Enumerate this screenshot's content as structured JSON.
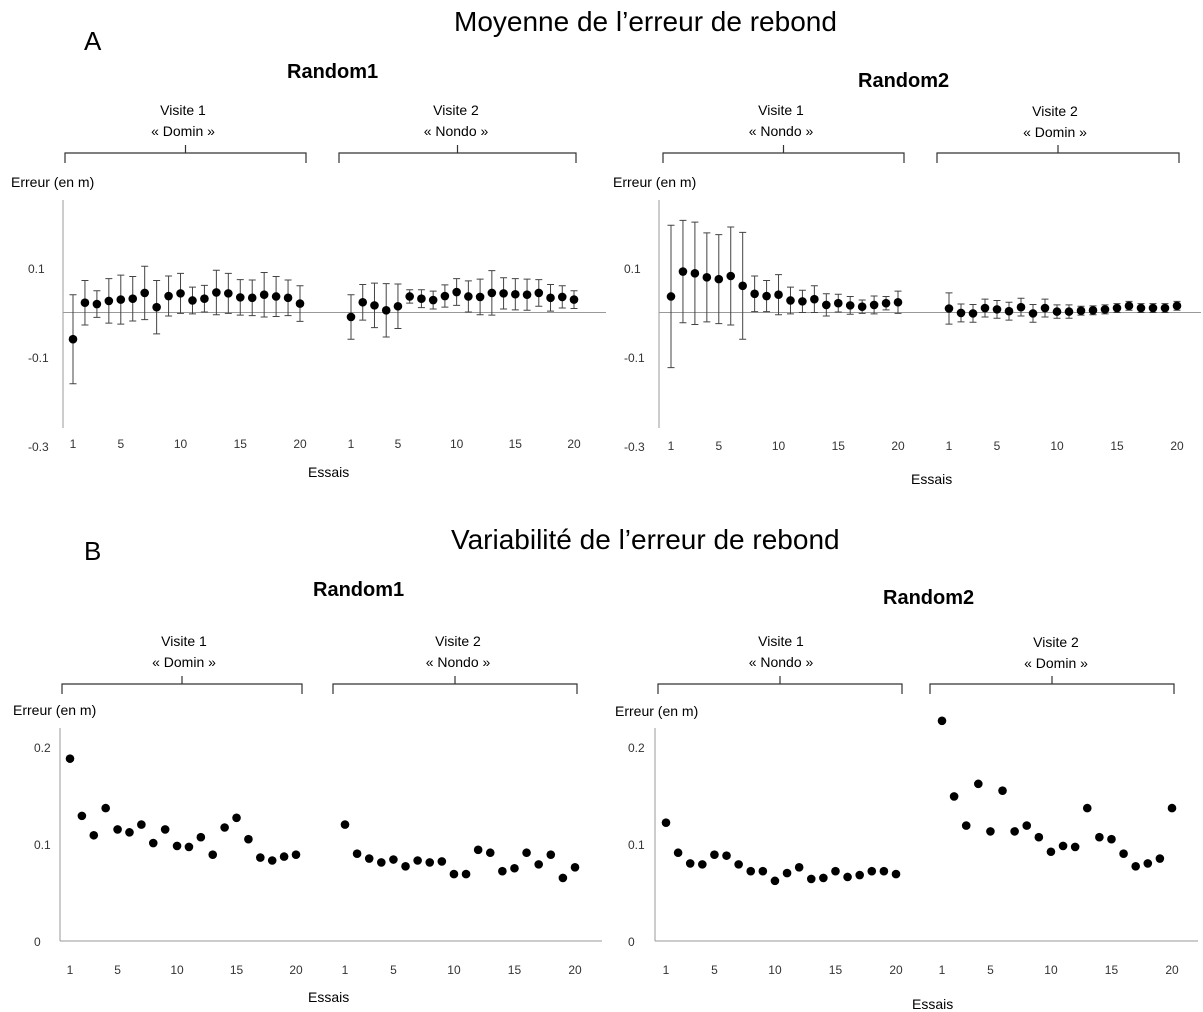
{
  "sections": {
    "A": {
      "letter": "A",
      "title": "Moyenne de l’erreur de rebond"
    },
    "B": {
      "letter": "B",
      "title": "Variabilité de l’erreur de rebond"
    }
  },
  "panels": {
    "A1": {
      "title": "Random1",
      "visit1": [
        "Visite 1",
        "« Domin »"
      ],
      "visit2": [
        "Visite 2",
        "«  Nondo »"
      ],
      "ylabel": "Erreur (en m)",
      "xlabel": "Essais"
    },
    "A2": {
      "title": "Random2",
      "visit1": [
        "Visite 1",
        "« Nondo »"
      ],
      "visit2": [
        "Visite 2",
        "«  Domin »"
      ],
      "ylabel": "Erreur (en m)",
      "xlabel": "Essais"
    },
    "B1": {
      "title": "Random1",
      "visit1": [
        "Visite 1",
        "« Domin »"
      ],
      "visit2": [
        "Visite 2",
        "«  Nondo »"
      ],
      "ylabel": "Erreur (en m)",
      "xlabel": "Essais"
    },
    "B2": {
      "title": "Random2",
      "visit1": [
        "Visite 1",
        "« Nondo »"
      ],
      "visit2": [
        "Visite 2",
        "«  Domin »"
      ],
      "ylabel": "Erreur (en m)",
      "xlabel": "Essais"
    }
  },
  "chart_data": [
    {
      "id": "A1",
      "type": "scatter",
      "title": "Random1",
      "xlabel": "Essais",
      "ylabel": "Erreur (en m)",
      "ylim": [
        -0.3,
        0.2
      ],
      "yticks": [
        0.1,
        -0.1,
        -0.3
      ],
      "yticklabels": [
        "0.1",
        "-0.1",
        "-0.3"
      ],
      "xticks": [
        1,
        5,
        10,
        15,
        20
      ],
      "error_bars": true,
      "series": [
        {
          "name": "Visite 1",
          "x": [
            1,
            2,
            3,
            4,
            5,
            6,
            7,
            8,
            9,
            10,
            11,
            12,
            13,
            14,
            15,
            16,
            17,
            18,
            19,
            20
          ],
          "values": [
            -0.06,
            0.022,
            0.019,
            0.026,
            0.029,
            0.031,
            0.044,
            0.012,
            0.037,
            0.043,
            0.027,
            0.031,
            0.045,
            0.043,
            0.034,
            0.033,
            0.04,
            0.036,
            0.033,
            0.02
          ],
          "errors": [
            0.1,
            0.05,
            0.03,
            0.05,
            0.055,
            0.05,
            0.06,
            0.06,
            0.045,
            0.045,
            0.03,
            0.03,
            0.05,
            0.045,
            0.04,
            0.04,
            0.05,
            0.045,
            0.04,
            0.04
          ]
        },
        {
          "name": "Visite 2",
          "x": [
            1,
            2,
            3,
            4,
            5,
            6,
            7,
            8,
            9,
            10,
            11,
            12,
            13,
            14,
            15,
            16,
            17,
            18,
            19,
            20
          ],
          "values": [
            -0.01,
            0.023,
            0.016,
            0.005,
            0.014,
            0.036,
            0.031,
            0.028,
            0.037,
            0.046,
            0.036,
            0.035,
            0.044,
            0.043,
            0.041,
            0.04,
            0.044,
            0.033,
            0.035,
            0.029
          ],
          "errors": [
            0.05,
            0.04,
            0.05,
            0.06,
            0.05,
            0.015,
            0.02,
            0.02,
            0.025,
            0.03,
            0.035,
            0.04,
            0.05,
            0.035,
            0.035,
            0.035,
            0.03,
            0.03,
            0.025,
            0.02
          ]
        }
      ]
    },
    {
      "id": "A2",
      "type": "scatter",
      "title": "Random2",
      "xlabel": "Essais",
      "ylabel": "Erreur (en m)",
      "ylim": [
        -0.3,
        0.2
      ],
      "yticks": [
        0.1,
        -0.1,
        -0.3
      ],
      "yticklabels": [
        "0.1",
        "-0.1",
        "-0.3"
      ],
      "xticks": [
        1,
        5,
        10,
        15,
        20
      ],
      "error_bars": true,
      "series": [
        {
          "name": "Visite 1",
          "x": [
            1,
            2,
            3,
            4,
            5,
            6,
            7,
            8,
            9,
            10,
            11,
            12,
            13,
            14,
            15,
            16,
            17,
            18,
            19,
            20
          ],
          "values": [
            0.036,
            0.092,
            0.088,
            0.079,
            0.075,
            0.082,
            0.06,
            0.042,
            0.037,
            0.04,
            0.027,
            0.025,
            0.03,
            0.017,
            0.021,
            0.016,
            0.013,
            0.017,
            0.021,
            0.023
          ],
          "errors": [
            0.16,
            0.115,
            0.115,
            0.1,
            0.1,
            0.11,
            0.12,
            0.04,
            0.035,
            0.045,
            0.03,
            0.025,
            0.03,
            0.025,
            0.02,
            0.02,
            0.015,
            0.02,
            0.015,
            0.025
          ]
        },
        {
          "name": "Visite 2",
          "x": [
            1,
            2,
            3,
            4,
            5,
            6,
            7,
            8,
            9,
            10,
            11,
            12,
            13,
            14,
            15,
            16,
            17,
            18,
            19,
            20
          ],
          "values": [
            0.009,
            -0.001,
            -0.002,
            0.01,
            0.007,
            0.003,
            0.012,
            -0.002,
            0.01,
            0.002,
            0.002,
            0.004,
            0.005,
            0.007,
            0.01,
            0.015,
            0.01,
            0.01,
            0.01,
            0.015
          ],
          "errors": [
            0.035,
            0.02,
            0.02,
            0.02,
            0.02,
            0.02,
            0.02,
            0.02,
            0.02,
            0.015,
            0.015,
            0.01,
            0.01,
            0.01,
            0.01,
            0.01,
            0.01,
            0.01,
            0.01,
            0.01
          ]
        }
      ]
    },
    {
      "id": "B1",
      "type": "scatter",
      "title": "Random1",
      "xlabel": "Essais",
      "ylabel": "Erreur (en m)",
      "ylim": [
        0,
        0.22
      ],
      "yticks": [
        0.2,
        0.1,
        0
      ],
      "yticklabels": [
        "0.2",
        "0.1",
        "0"
      ],
      "xticks": [
        1,
        5,
        10,
        15,
        20
      ],
      "series": [
        {
          "name": "Visite 1",
          "x": [
            1,
            2,
            3,
            4,
            5,
            6,
            7,
            8,
            9,
            10,
            11,
            12,
            13,
            14,
            15,
            16,
            17,
            18,
            19,
            20
          ],
          "values": [
            0.188,
            0.129,
            0.109,
            0.137,
            0.115,
            0.112,
            0.12,
            0.101,
            0.115,
            0.098,
            0.097,
            0.107,
            0.089,
            0.117,
            0.127,
            0.105,
            0.086,
            0.083,
            0.087,
            0.089
          ]
        },
        {
          "name": "Visite 2",
          "x": [
            1,
            2,
            3,
            4,
            5,
            6,
            7,
            8,
            9,
            10,
            11,
            12,
            13,
            14,
            15,
            16,
            17,
            18,
            19,
            20
          ],
          "values": [
            0.12,
            0.09,
            0.085,
            0.081,
            0.084,
            0.077,
            0.083,
            0.081,
            0.082,
            0.069,
            0.069,
            0.094,
            0.091,
            0.072,
            0.075,
            0.091,
            0.079,
            0.089,
            0.065,
            0.076
          ]
        }
      ]
    },
    {
      "id": "B2",
      "type": "scatter",
      "title": "Random2",
      "xlabel": "Essais",
      "ylabel": "Erreur (en m)",
      "ylim": [
        0,
        0.22
      ],
      "yticks": [
        0.2,
        0.1,
        0
      ],
      "yticklabels": [
        "0.2",
        "0.1",
        "0"
      ],
      "xticks": [
        1,
        5,
        10,
        15,
        20
      ],
      "series": [
        {
          "name": "Visite 1",
          "x": [
            1,
            2,
            3,
            4,
            5,
            6,
            7,
            8,
            9,
            10,
            11,
            12,
            13,
            14,
            15,
            16,
            17,
            18,
            19,
            20
          ],
          "values": [
            0.122,
            0.091,
            0.08,
            0.079,
            0.089,
            0.088,
            0.079,
            0.072,
            0.072,
            0.062,
            0.07,
            0.076,
            0.064,
            0.065,
            0.072,
            0.066,
            0.068,
            0.072,
            0.072,
            0.069
          ]
        },
        {
          "name": "Visite 2",
          "x": [
            1,
            2,
            3,
            4,
            5,
            6,
            7,
            8,
            9,
            10,
            11,
            12,
            13,
            14,
            15,
            16,
            17,
            18,
            19,
            20
          ],
          "values": [
            0.227,
            0.149,
            0.119,
            0.162,
            0.113,
            0.155,
            0.113,
            0.119,
            0.107,
            0.092,
            0.098,
            0.097,
            0.137,
            0.107,
            0.105,
            0.09,
            0.077,
            0.08,
            0.085,
            0.137
          ]
        }
      ]
    }
  ]
}
